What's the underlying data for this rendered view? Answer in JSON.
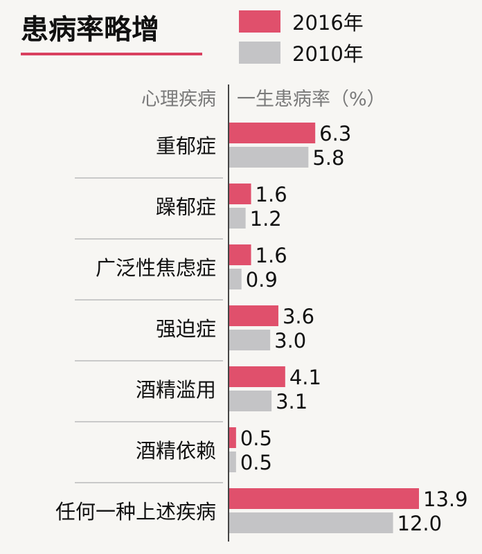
{
  "colors": {
    "series_2016": "#e0506c",
    "series_2010": "#c4c4c6",
    "accent_underline": "#d9405f",
    "divider": "#c9c9c9",
    "axis": "#444444"
  },
  "chart_data": {
    "type": "bar",
    "orientation": "horizontal",
    "title": "患病率略增",
    "category_header": "心理疾病",
    "value_header": "一生患病率（%）",
    "categories": [
      "重郁症",
      "躁郁症",
      "广泛性焦虑症",
      "强迫症",
      "酒精滥用",
      "酒精依赖",
      "任何一种上述疾病"
    ],
    "series": [
      {
        "name": "2016年",
        "values": [
          6.3,
          1.6,
          1.6,
          3.6,
          4.1,
          0.5,
          13.9
        ]
      },
      {
        "name": "2010年",
        "values": [
          5.8,
          1.2,
          0.9,
          3.0,
          3.1,
          0.5,
          12.0
        ]
      }
    ],
    "value_labels": [
      [
        "6.3",
        "1.6",
        "1.6",
        "3.6",
        "4.1",
        "0.5",
        "13.9"
      ],
      [
        "5.8",
        "1.2",
        "0.9",
        "3.0",
        "3.1",
        "0.5",
        "12.0"
      ]
    ],
    "xlim": [
      0,
      13.9
    ],
    "grid": false,
    "legend_position": "top-right"
  }
}
